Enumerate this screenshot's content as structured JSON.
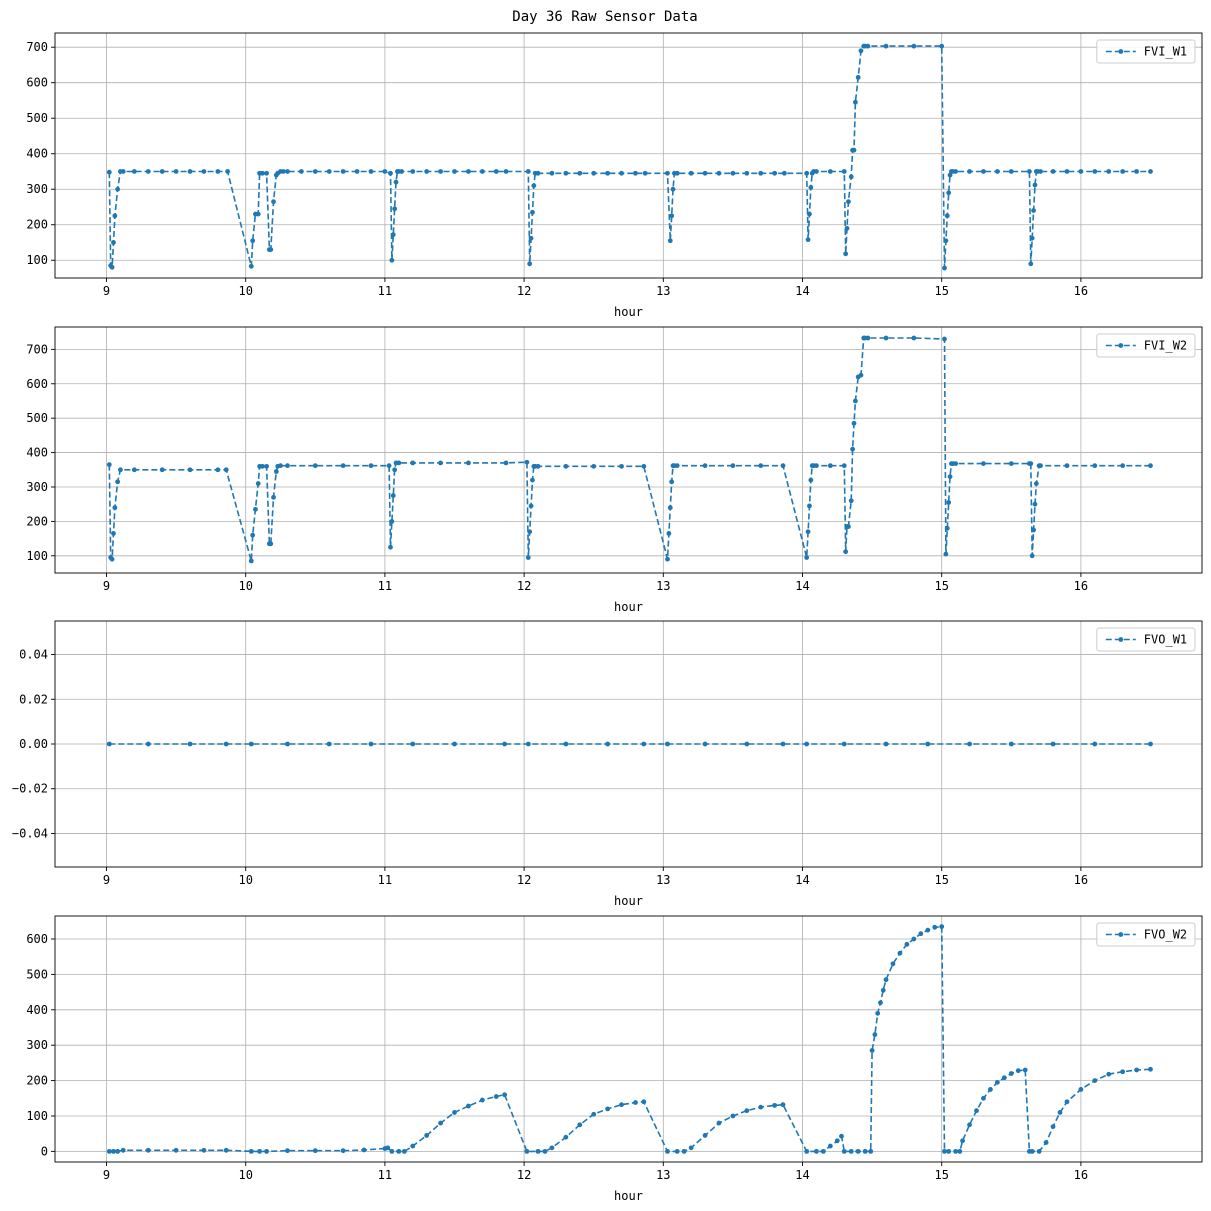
{
  "figure_title": "Day 36 Raw Sensor Data",
  "colors": {
    "series": "#1f77b4",
    "grid": "#b0b0b0",
    "axes": "#000000",
    "legend_border": "#cccccc"
  },
  "chart_data": [
    {
      "type": "line",
      "line_style": "dashed",
      "marker": "point",
      "xlabel": "hour",
      "xlim": [
        8.63,
        16.87
      ],
      "ylim": [
        50,
        740
      ],
      "xticks": [
        9,
        10,
        11,
        12,
        13,
        14,
        15,
        16
      ],
      "yticks": [
        100,
        200,
        300,
        400,
        500,
        600,
        700
      ],
      "ytick_labels": [
        "100",
        "200",
        "300",
        "400",
        "500",
        "600",
        "700"
      ],
      "grid": true,
      "legend_position": "top-right",
      "series": [
        {
          "name": "FVI_W1",
          "x": [
            9.02,
            9.03,
            9.04,
            9.05,
            9.06,
            9.08,
            9.1,
            9.12,
            9.2,
            9.3,
            9.4,
            9.5,
            9.6,
            9.7,
            9.8,
            9.87,
            10.04,
            10.05,
            10.07,
            10.09,
            10.1,
            10.12,
            10.15,
            10.17,
            10.18,
            10.2,
            10.22,
            10.23,
            10.25,
            10.27,
            10.3,
            10.4,
            10.5,
            10.6,
            10.7,
            10.8,
            10.9,
            11.0,
            11.04,
            11.05,
            11.06,
            11.07,
            11.08,
            11.09,
            11.1,
            11.12,
            11.2,
            11.3,
            11.4,
            11.5,
            11.6,
            11.7,
            11.8,
            11.87,
            12.03,
            12.04,
            12.05,
            12.06,
            12.07,
            12.08,
            12.1,
            12.2,
            12.3,
            12.4,
            12.5,
            12.6,
            12.7,
            12.8,
            12.87,
            13.03,
            13.05,
            13.06,
            13.07,
            13.08,
            13.1,
            13.2,
            13.3,
            13.4,
            13.5,
            13.6,
            13.7,
            13.8,
            13.87,
            14.03,
            14.04,
            14.05,
            14.06,
            14.07,
            14.08,
            14.1,
            14.2,
            14.3,
            14.31,
            14.32,
            14.33,
            14.35,
            14.36,
            14.37,
            14.38,
            14.4,
            14.42,
            14.44,
            14.45,
            14.47,
            14.6,
            14.8,
            15.0,
            15.02,
            15.03,
            15.04,
            15.05,
            15.06,
            15.07,
            15.08,
            15.1,
            15.2,
            15.3,
            15.4,
            15.5,
            15.63,
            15.64,
            15.65,
            15.66,
            15.67,
            15.68,
            15.69,
            15.71,
            15.8,
            15.9,
            16.0,
            16.1,
            16.2,
            16.3,
            16.4,
            16.5
          ],
          "y": [
            348,
            85,
            80,
            150,
            225,
            300,
            350,
            350,
            350,
            350,
            350,
            350,
            350,
            350,
            350,
            350,
            83,
            155,
            230,
            230,
            345,
            345,
            345,
            130,
            130,
            265,
            340,
            345,
            350,
            350,
            350,
            350,
            350,
            350,
            350,
            350,
            350,
            350,
            345,
            100,
            172,
            245,
            320,
            350,
            350,
            350,
            350,
            350,
            350,
            350,
            350,
            350,
            350,
            350,
            350,
            90,
            162,
            235,
            310,
            345,
            345,
            345,
            345,
            345,
            345,
            345,
            345,
            345,
            345,
            345,
            155,
            225,
            300,
            345,
            345,
            345,
            345,
            345,
            345,
            345,
            345,
            345,
            345,
            345,
            158,
            230,
            305,
            345,
            350,
            350,
            350,
            350,
            118,
            190,
            265,
            335,
            410,
            410,
            545,
            615,
            690,
            703,
            703,
            703,
            703,
            703,
            703,
            78,
            155,
            225,
            290,
            340,
            350,
            350,
            350,
            350,
            350,
            350,
            350,
            350,
            90,
            162,
            240,
            312,
            350,
            350,
            350,
            350,
            350,
            350,
            350,
            350,
            350,
            350,
            350
          ]
        }
      ]
    },
    {
      "type": "line",
      "line_style": "dashed",
      "marker": "point",
      "xlabel": "hour",
      "xlim": [
        8.63,
        16.87
      ],
      "ylim": [
        50,
        765
      ],
      "xticks": [
        9,
        10,
        11,
        12,
        13,
        14,
        15,
        16
      ],
      "yticks": [
        100,
        200,
        300,
        400,
        500,
        600,
        700
      ],
      "ytick_labels": [
        "100",
        "200",
        "300",
        "400",
        "500",
        "600",
        "700"
      ],
      "grid": true,
      "legend_position": "top-right",
      "series": [
        {
          "name": "FVI_W2",
          "x": [
            9.02,
            9.03,
            9.04,
            9.05,
            9.06,
            9.08,
            9.1,
            9.2,
            9.4,
            9.6,
            9.8,
            9.86,
            10.04,
            10.05,
            10.07,
            10.09,
            10.1,
            10.12,
            10.15,
            10.17,
            10.18,
            10.2,
            10.22,
            10.23,
            10.25,
            10.3,
            10.5,
            10.7,
            10.9,
            11.03,
            11.04,
            11.05,
            11.06,
            11.07,
            11.08,
            11.1,
            11.2,
            11.4,
            11.6,
            11.87,
            12.02,
            12.03,
            12.04,
            12.05,
            12.06,
            12.07,
            12.08,
            12.1,
            12.3,
            12.5,
            12.7,
            12.86,
            13.03,
            13.04,
            13.05,
            13.06,
            13.07,
            13.08,
            13.1,
            13.3,
            13.5,
            13.7,
            13.86,
            14.03,
            14.04,
            14.05,
            14.06,
            14.07,
            14.08,
            14.1,
            14.2,
            14.3,
            14.31,
            14.32,
            14.33,
            14.35,
            14.36,
            14.37,
            14.38,
            14.4,
            14.42,
            14.44,
            14.45,
            14.47,
            14.6,
            14.8,
            15.02,
            15.03,
            15.04,
            15.05,
            15.06,
            15.07,
            15.08,
            15.1,
            15.3,
            15.5,
            15.63,
            15.64,
            15.65,
            15.66,
            15.67,
            15.68,
            15.7,
            15.71,
            15.9,
            16.1,
            16.3,
            16.5
          ],
          "y": [
            365,
            95,
            90,
            165,
            240,
            315,
            350,
            350,
            350,
            350,
            350,
            350,
            85,
            160,
            235,
            310,
            360,
            360,
            360,
            135,
            135,
            270,
            345,
            360,
            362,
            362,
            362,
            362,
            362,
            362,
            125,
            200,
            275,
            350,
            370,
            370,
            370,
            370,
            370,
            370,
            372,
            95,
            170,
            245,
            320,
            360,
            360,
            360,
            360,
            360,
            360,
            360,
            90,
            165,
            240,
            315,
            362,
            362,
            362,
            362,
            362,
            362,
            362,
            95,
            170,
            245,
            320,
            362,
            362,
            362,
            362,
            362,
            112,
            185,
            185,
            260,
            410,
            485,
            550,
            620,
            625,
            733,
            733,
            733,
            733,
            733,
            730,
            105,
            180,
            255,
            330,
            368,
            368,
            368,
            368,
            368,
            368,
            368,
            100,
            175,
            250,
            310,
            362,
            362,
            362,
            362,
            362,
            362
          ]
        }
      ]
    },
    {
      "type": "line",
      "line_style": "dashed",
      "marker": "point",
      "xlabel": "hour",
      "xlim": [
        8.63,
        16.87
      ],
      "ylim": [
        -0.055,
        0.055
      ],
      "xticks": [
        9,
        10,
        11,
        12,
        13,
        14,
        15,
        16
      ],
      "yticks": [
        -0.04,
        -0.02,
        0.0,
        0.02,
        0.04
      ],
      "ytick_labels": [
        "−0.04",
        "−0.02",
        "0.00",
        "0.02",
        "0.04"
      ],
      "grid": true,
      "legend_position": "top-right",
      "series": [
        {
          "name": "FVO_W1",
          "x": [
            9.02,
            9.3,
            9.6,
            9.86,
            10.04,
            10.3,
            10.6,
            10.9,
            11.2,
            11.5,
            11.86,
            12.03,
            12.3,
            12.6,
            12.86,
            13.03,
            13.3,
            13.6,
            13.86,
            14.03,
            14.3,
            14.6,
            14.9,
            15.2,
            15.5,
            15.8,
            16.1,
            16.5
          ],
          "y": [
            0,
            0,
            0,
            0,
            0,
            0,
            0,
            0,
            0,
            0,
            0,
            0,
            0,
            0,
            0,
            0,
            0,
            0,
            0,
            0,
            0,
            0,
            0,
            0,
            0,
            0,
            0,
            0
          ]
        }
      ]
    },
    {
      "type": "line",
      "line_style": "dashed",
      "marker": "point",
      "xlabel": "hour",
      "xlim": [
        8.63,
        16.87
      ],
      "ylim": [
        -30,
        665
      ],
      "xticks": [
        9,
        10,
        11,
        12,
        13,
        14,
        15,
        16
      ],
      "yticks": [
        0,
        100,
        200,
        300,
        400,
        500,
        600
      ],
      "ytick_labels": [
        "0",
        "100",
        "200",
        "300",
        "400",
        "500",
        "600"
      ],
      "grid": true,
      "legend_position": "top-right",
      "series": [
        {
          "name": "FVO_W2",
          "x": [
            9.02,
            9.05,
            9.08,
            9.12,
            9.3,
            9.5,
            9.7,
            9.86,
            10.04,
            10.1,
            10.15,
            10.3,
            10.5,
            10.7,
            10.85,
            11.0,
            11.02,
            11.05,
            11.1,
            11.14,
            11.2,
            11.3,
            11.4,
            11.5,
            11.6,
            11.7,
            11.8,
            11.86,
            12.02,
            12.1,
            12.15,
            12.2,
            12.3,
            12.4,
            12.5,
            12.6,
            12.7,
            12.8,
            12.86,
            13.03,
            13.1,
            13.15,
            13.2,
            13.3,
            13.4,
            13.5,
            13.6,
            13.7,
            13.8,
            13.86,
            14.03,
            14.1,
            14.15,
            14.2,
            14.25,
            14.28,
            14.3,
            14.35,
            14.4,
            14.45,
            14.49,
            14.5,
            14.52,
            14.54,
            14.56,
            14.58,
            14.6,
            14.65,
            14.7,
            14.75,
            14.8,
            14.85,
            14.9,
            14.95,
            15.0,
            15.02,
            15.05,
            15.1,
            15.13,
            15.15,
            15.2,
            15.25,
            15.3,
            15.35,
            15.4,
            15.45,
            15.5,
            15.55,
            15.6,
            15.63,
            15.65,
            15.7,
            15.75,
            15.8,
            15.85,
            15.9,
            16.0,
            16.1,
            16.2,
            16.3,
            16.4,
            16.5
          ],
          "y": [
            0,
            0,
            0,
            3,
            3,
            3,
            3,
            3,
            0,
            0,
            0,
            2,
            2,
            2,
            4,
            8,
            10,
            0,
            0,
            0,
            15,
            45,
            80,
            110,
            128,
            145,
            155,
            160,
            0,
            0,
            0,
            10,
            40,
            75,
            105,
            120,
            132,
            138,
            140,
            0,
            0,
            0,
            10,
            45,
            80,
            100,
            115,
            125,
            130,
            132,
            0,
            0,
            0,
            15,
            30,
            43,
            0,
            0,
            0,
            0,
            0,
            285,
            330,
            390,
            420,
            455,
            485,
            530,
            560,
            585,
            600,
            615,
            625,
            633,
            635,
            0,
            0,
            0,
            0,
            30,
            75,
            115,
            150,
            175,
            195,
            208,
            220,
            228,
            230,
            0,
            0,
            0,
            25,
            70,
            110,
            140,
            175,
            200,
            218,
            225,
            230,
            232
          ]
        }
      ]
    }
  ]
}
